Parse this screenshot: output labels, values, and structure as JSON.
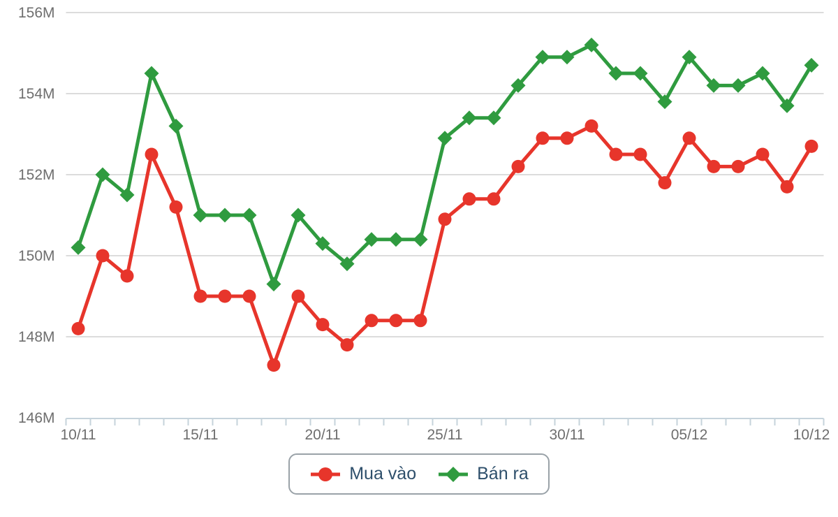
{
  "chart_data": {
    "type": "line",
    "x": [
      "10/11",
      "11/11",
      "12/11",
      "13/11",
      "14/11",
      "15/11",
      "16/11",
      "17/11",
      "18/11",
      "19/11",
      "20/11",
      "21/11",
      "22/11",
      "23/11",
      "24/11",
      "25/11",
      "26/11",
      "27/11",
      "28/11",
      "29/11",
      "30/11",
      "01/12",
      "02/12",
      "03/12",
      "04/12",
      "05/12",
      "06/12",
      "07/12",
      "08/12",
      "09/12",
      "10/12"
    ],
    "x_major_ticks": [
      "10/11",
      "15/11",
      "20/11",
      "25/11",
      "30/11",
      "05/12",
      "10/12"
    ],
    "y_ticks": [
      {
        "label": "146M",
        "value": 146
      },
      {
        "label": "148M",
        "value": 148
      },
      {
        "label": "150M",
        "value": 150
      },
      {
        "label": "152M",
        "value": 152
      },
      {
        "label": "154M",
        "value": 154
      },
      {
        "label": "156M",
        "value": 156
      }
    ],
    "ylim": [
      146,
      156
    ],
    "grid": true,
    "legend_position": "bottom",
    "title": "",
    "xlabel": "",
    "ylabel": "",
    "series": [
      {
        "name": "Mua vào",
        "marker": "circle",
        "color": "#e7352b",
        "values": [
          148.2,
          150.0,
          149.5,
          152.5,
          151.2,
          149.0,
          149.0,
          149.0,
          147.3,
          149.0,
          148.3,
          147.8,
          148.4,
          148.4,
          148.4,
          150.9,
          151.4,
          151.4,
          152.2,
          152.9,
          152.9,
          153.2,
          152.5,
          152.5,
          151.8,
          152.9,
          152.2,
          152.2,
          152.5,
          151.7,
          152.7
        ]
      },
      {
        "name": "Bán ra",
        "marker": "diamond",
        "color": "#2f9b3f",
        "values": [
          150.2,
          152.0,
          151.5,
          154.5,
          153.2,
          151.0,
          151.0,
          151.0,
          149.3,
          151.0,
          150.3,
          149.8,
          150.4,
          150.4,
          150.4,
          152.9,
          153.4,
          153.4,
          154.2,
          154.9,
          154.9,
          155.2,
          154.5,
          154.5,
          153.8,
          154.9,
          154.2,
          154.2,
          154.5,
          153.7,
          154.7
        ]
      }
    ]
  },
  "legend": {
    "items": [
      {
        "label": "Mua vào",
        "color": "#e7352b",
        "marker": "circle"
      },
      {
        "label": "Bán ra",
        "color": "#2f9b3f",
        "marker": "diamond"
      }
    ]
  },
  "colors": {
    "background": "#ffffff",
    "grid": "#d0d0d0",
    "axis": "#c6d3db",
    "tick_label": "#6e6e6e",
    "legend_text": "#2e4f6b",
    "legend_border": "#9aa2a8"
  }
}
